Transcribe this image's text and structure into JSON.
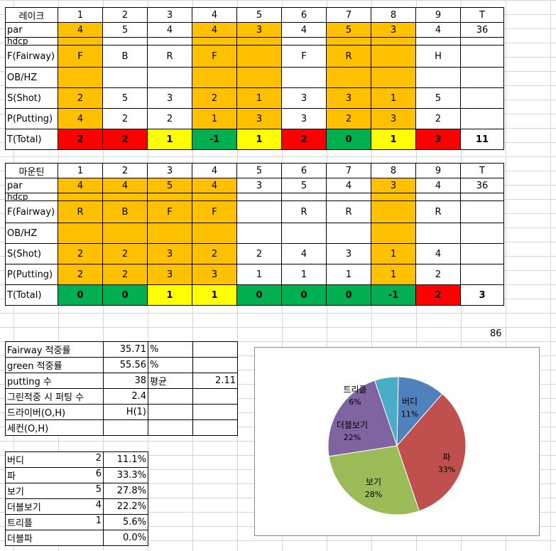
{
  "holes": [
    "1",
    "2",
    "3",
    "4",
    "5",
    "6",
    "7",
    "8",
    "9",
    "T"
  ],
  "lake": {
    "name": "레이크",
    "par": [
      "4",
      "5",
      "4",
      "4",
      "3",
      "4",
      "5",
      "3",
      "4",
      "36"
    ],
    "fairway": [
      "F",
      "B",
      "R",
      "F",
      "",
      "F",
      "R",
      "",
      "H",
      ""
    ],
    "shot": [
      "2",
      "5",
      "3",
      "2",
      "1",
      "3",
      "3",
      "1",
      "5",
      ""
    ],
    "putting": [
      "4",
      "2",
      "2",
      "1",
      "3",
      "3",
      "2",
      "3",
      "2",
      ""
    ],
    "total": [
      "2",
      "2",
      "1",
      "-1",
      "1",
      "2",
      "0",
      "1",
      "3",
      "11"
    ]
  },
  "mountain": {
    "name": "마운틴",
    "par": [
      "4",
      "4",
      "5",
      "4",
      "3",
      "5",
      "4",
      "3",
      "4",
      "36"
    ],
    "fairway": [
      "R",
      "B",
      "F",
      "F",
      "",
      "R",
      "R",
      "",
      "R",
      ""
    ],
    "shot": [
      "2",
      "2",
      "3",
      "2",
      "2",
      "4",
      "3",
      "1",
      "4",
      ""
    ],
    "putting": [
      "2",
      "2",
      "3",
      "3",
      "1",
      "1",
      "1",
      "1",
      "2",
      ""
    ],
    "total": [
      "0",
      "0",
      "1",
      "1",
      "0",
      "0",
      "0",
      "-1",
      "2",
      "3"
    ]
  },
  "row_labels": {
    "par": "par",
    "hdcp": "hdcp",
    "fairway": "F(Fairway)",
    "obhz": "OB/HZ",
    "shot": "S(Shot)",
    "putting": "P(Putting)",
    "total": "T(Total)"
  },
  "grand_total": "86",
  "stats": {
    "fairway_label": "Fairway 적중률",
    "fairway_value": "35.71",
    "fairway_unit": "%",
    "green_label": "green 적중률",
    "green_value": "55.56",
    "green_unit": "%",
    "putting_label": "putting 수",
    "putting_value": "38",
    "avg_label": "평균",
    "avg_value": "2.11",
    "gir_putt_label": "그린적중 시 퍼팅 수",
    "gir_putt_value": "2.4",
    "driver_label": "드라이버(O,H)",
    "driver_value": "H(1)",
    "second_label": "세컨(O,H)"
  },
  "score_dist": [
    {
      "label": "버디",
      "count": "2",
      "pct": "11.1%"
    },
    {
      "label": "파",
      "count": "6",
      "pct": "33.3%"
    },
    {
      "label": "보기",
      "count": "5",
      "pct": "27.8%"
    },
    {
      "label": "더블보기",
      "count": "4",
      "pct": "22.2%"
    },
    {
      "label": "트리플",
      "count": "1",
      "pct": "5.6%"
    },
    {
      "label": "더블파",
      "count": "",
      "pct": "0.0%"
    }
  ],
  "colors": {
    "or": "#ffc000",
    "rd": "#ff0000",
    "yl": "#ffff00",
    "gn": "#00b050"
  },
  "chart_data": {
    "type": "pie",
    "title": "",
    "categories": [
      "버디",
      "파",
      "보기",
      "더블보기",
      "트리플"
    ],
    "values": [
      2,
      6,
      5,
      4,
      1
    ],
    "labels": [
      "11%",
      "33%",
      "28%",
      "22%",
      "6%"
    ],
    "colors": [
      "#4f81bd",
      "#c0504d",
      "#9bbb59",
      "#8064a2",
      "#4bacc6"
    ]
  }
}
